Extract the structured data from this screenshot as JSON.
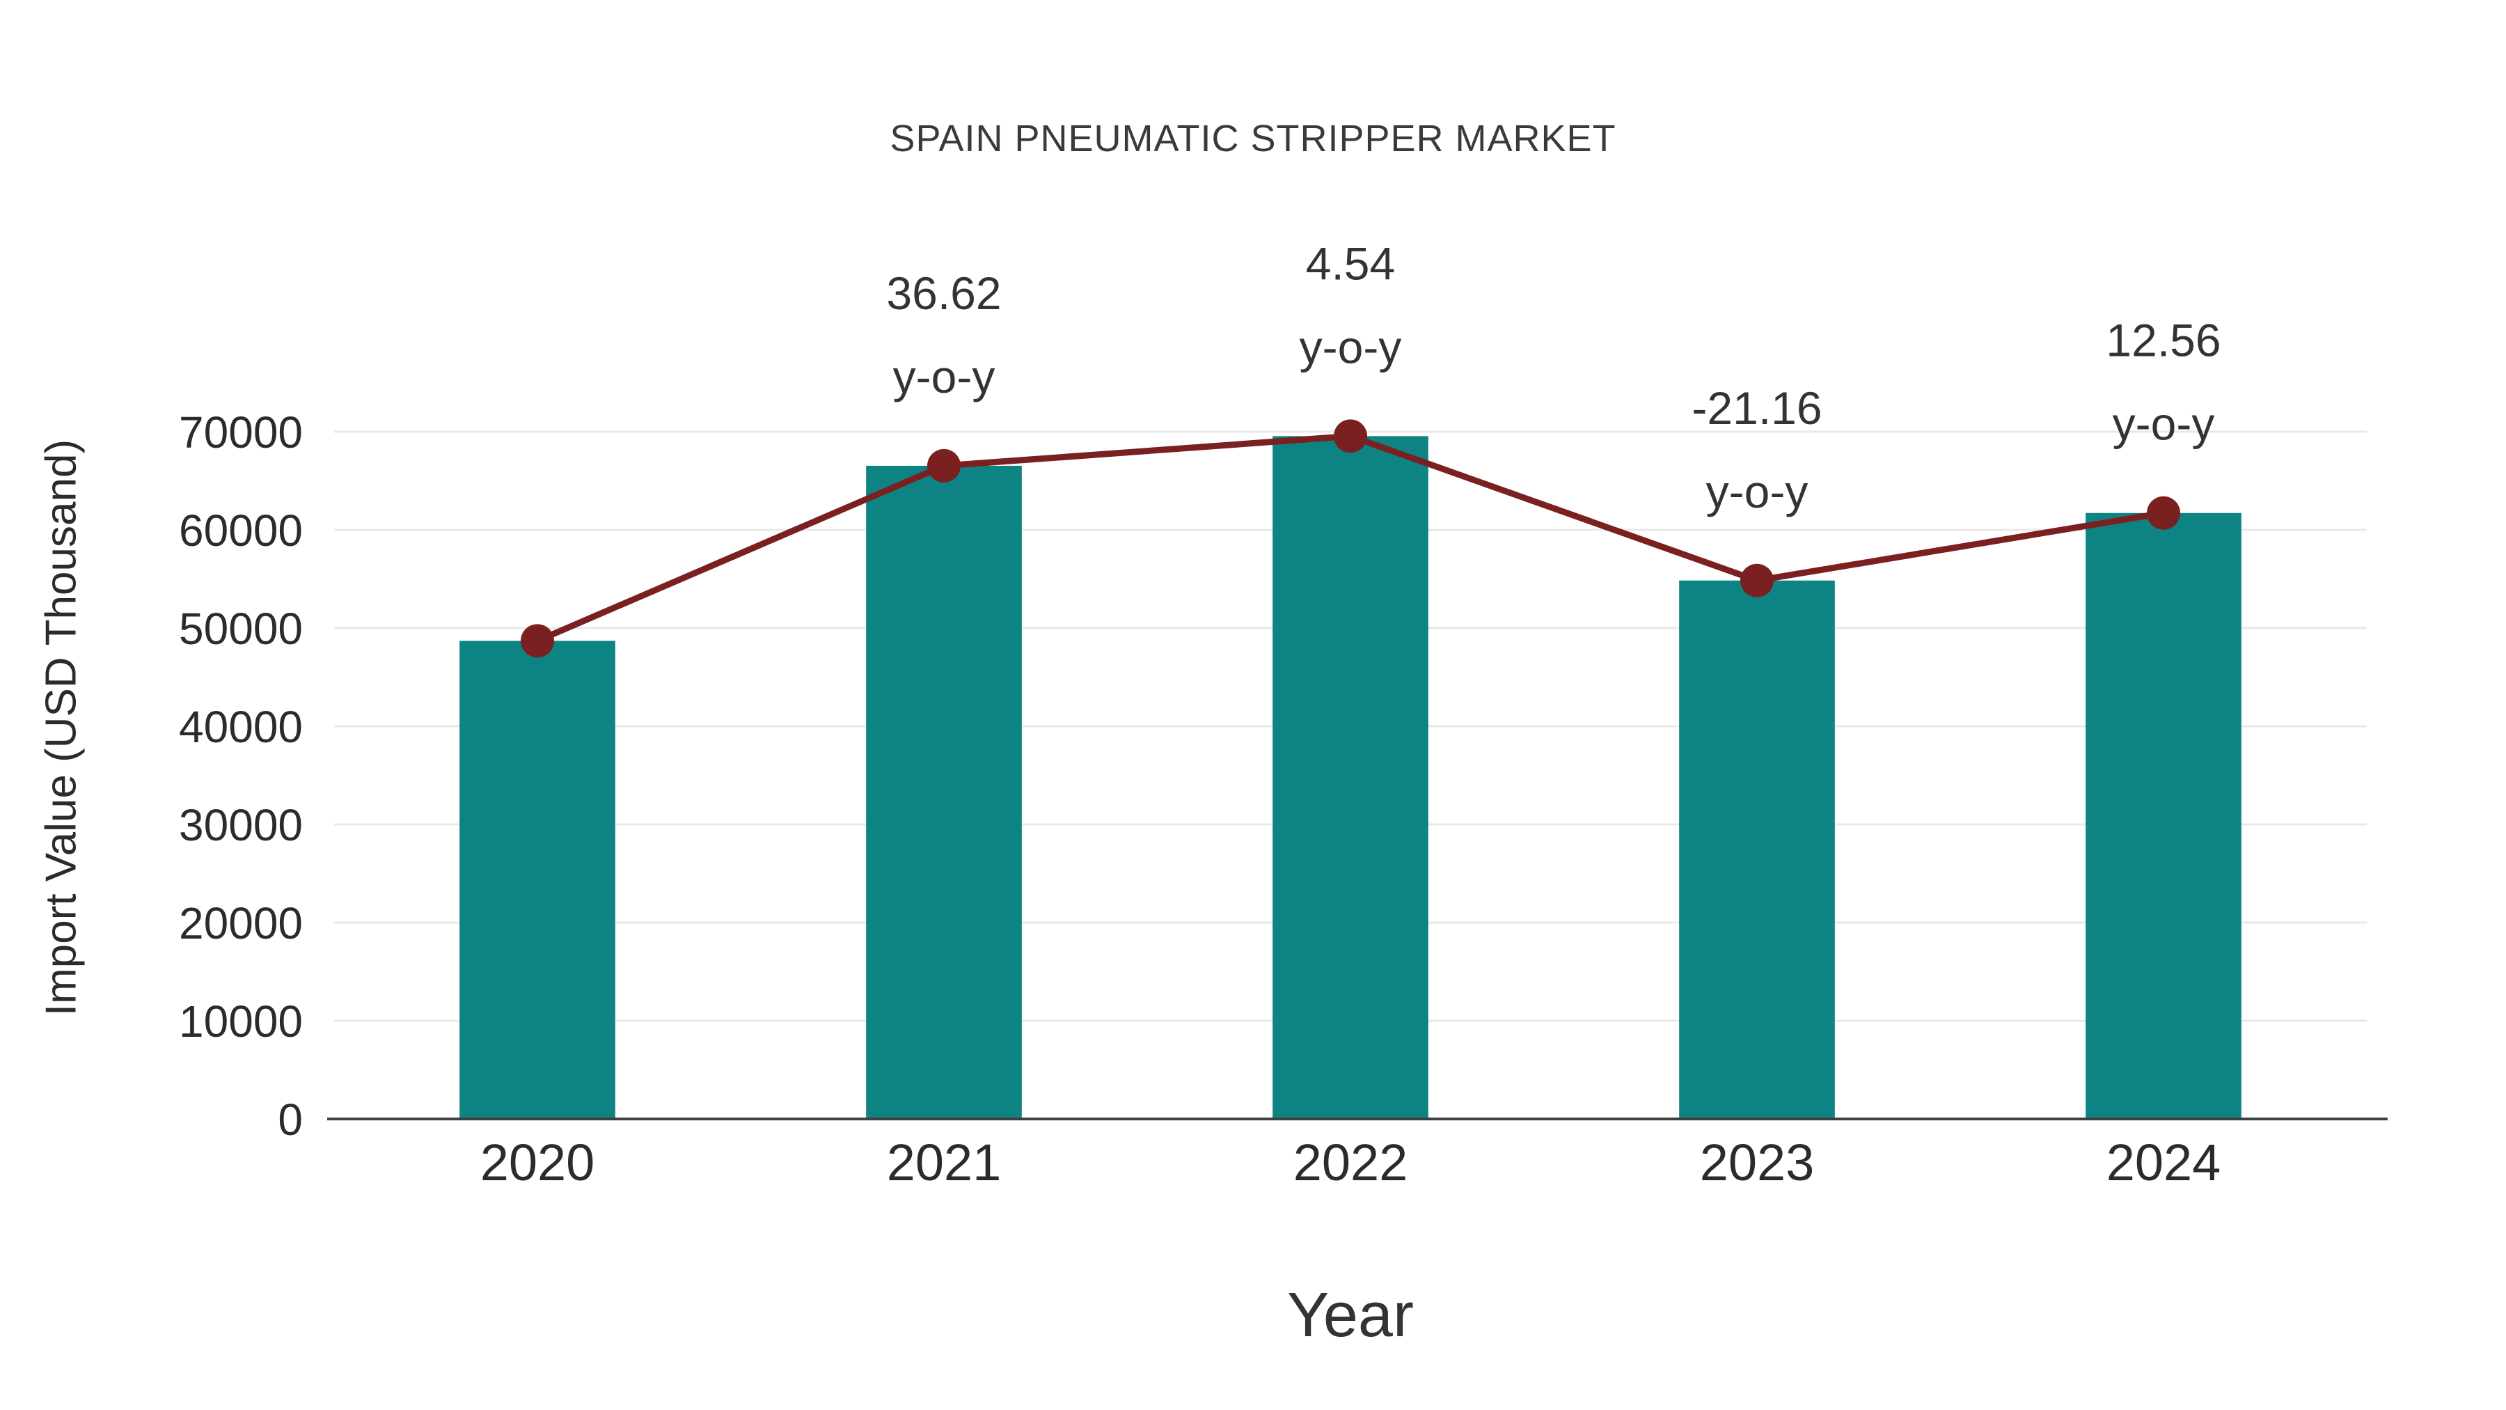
{
  "chart_data": {
    "type": "bar",
    "title": "SPAIN PNEUMATIC STRIPPER MARKET",
    "xlabel": "Year",
    "ylabel": "Import Value (USD Thousand)",
    "categories": [
      "2020",
      "2021",
      "2022",
      "2023",
      "2024"
    ],
    "series": [
      {
        "name": "Import Value (USD Thousand)",
        "type": "bar",
        "values": [
          48700,
          66530,
          69550,
          54840,
          61720
        ],
        "color": "#0e8383"
      },
      {
        "name": "y-o-y trend",
        "type": "line",
        "values": [
          48700,
          66530,
          69550,
          54840,
          61720
        ],
        "color": "#7a2020"
      }
    ],
    "annotations": [
      {
        "category": "2021",
        "value_label": "36.62",
        "sublabel": "y-o-y"
      },
      {
        "category": "2022",
        "value_label": "4.54",
        "sublabel": "y-o-y"
      },
      {
        "category": "2023",
        "value_label": "-21.16",
        "sublabel": "y-o-y"
      },
      {
        "category": "2024",
        "value_label": "12.56",
        "sublabel": "y-o-y"
      }
    ],
    "ylim": [
      0,
      70000
    ],
    "yticks": [
      0,
      10000,
      20000,
      30000,
      40000,
      50000,
      60000,
      70000
    ],
    "grid": true,
    "legend": "none",
    "colors": {
      "bar": "#0e8383",
      "line": "#7a2020",
      "marker": "#7a2020",
      "gridline": "#e8e8e8",
      "axis_line": "#404040"
    }
  }
}
